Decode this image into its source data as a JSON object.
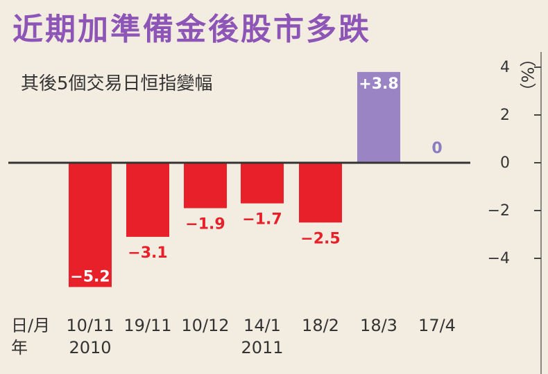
{
  "title": "近期加準備金後股市多跌",
  "subtitle": "其後5個交易日恒指變幅",
  "colors": {
    "negative": "#e8202a",
    "positive": "#9a84c4",
    "title": "#8d55b5",
    "label_positive": "#ffffff",
    "label_zero": "#8a7cc0"
  },
  "chart_data": {
    "type": "bar",
    "title": "近期加準備金後股市多跌",
    "subtitle": "其後5個交易日恒指變幅",
    "ylabel": "（%）",
    "xlabel_rows": [
      "日/月",
      "年"
    ],
    "categories": [
      "10/11",
      "19/11",
      "10/12",
      "14/1",
      "18/2",
      "18/3",
      "17/4"
    ],
    "year_labels": [
      "2010",
      "",
      "",
      "2011",
      "",
      "",
      ""
    ],
    "values": [
      -5.2,
      -3.1,
      -1.9,
      -1.7,
      -2.5,
      3.8,
      0
    ],
    "value_labels": [
      "−5.2",
      "−3.1",
      "−1.9",
      "−1.7",
      "−2.5",
      "+3.8",
      "0"
    ],
    "ylim": [
      -6,
      4
    ],
    "yticks": [
      4,
      2,
      0,
      -2,
      -4
    ],
    "ytick_labels": [
      "4",
      "2",
      "0",
      "−2",
      "−4"
    ],
    "grid": false,
    "legend": "none"
  }
}
